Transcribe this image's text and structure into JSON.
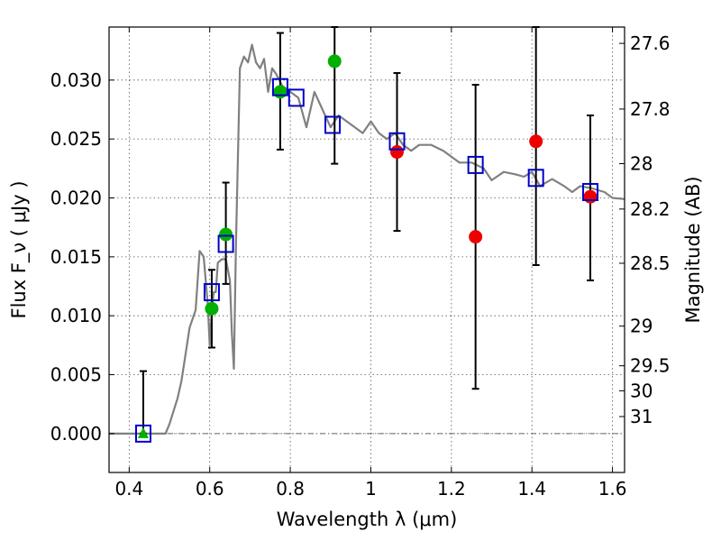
{
  "chart_data": {
    "type": "scatter",
    "title": "",
    "xlabel": "Wavelength  λ (μm)",
    "ylabel": "Flux  F_ν  ( μJy )",
    "ylabel_right": "Magnitude (AB)",
    "xlim": [
      0.35,
      1.63
    ],
    "ylim": [
      -0.0033,
      0.0345
    ],
    "grid": true,
    "x_ticks": [
      {
        "value": 0.4,
        "label": "0.4"
      },
      {
        "value": 0.6,
        "label": "0.6"
      },
      {
        "value": 0.8,
        "label": "0.8"
      },
      {
        "value": 1.0,
        "label": "1"
      },
      {
        "value": 1.2,
        "label": "1.2"
      },
      {
        "value": 1.4,
        "label": "1.4"
      },
      {
        "value": 1.6,
        "label": "1.6"
      }
    ],
    "y_ticks": [
      {
        "value": 0.0,
        "label": "0.000"
      },
      {
        "value": 0.005,
        "label": "0.005"
      },
      {
        "value": 0.01,
        "label": "0.010"
      },
      {
        "value": 0.015,
        "label": "0.015"
      },
      {
        "value": 0.02,
        "label": "0.020"
      },
      {
        "value": 0.025,
        "label": "0.025"
      },
      {
        "value": 0.03,
        "label": "0.030"
      }
    ],
    "mag_ticks": [
      {
        "mag": 27.6,
        "label": "27.6"
      },
      {
        "mag": 27.8,
        "label": "27.8"
      },
      {
        "mag": 28.0,
        "label": "28"
      },
      {
        "mag": 28.2,
        "label": "28.2"
      },
      {
        "mag": 28.5,
        "label": "28.5"
      },
      {
        "mag": 29.0,
        "label": "29"
      },
      {
        "mag": 29.5,
        "label": "29.5"
      },
      {
        "mag": 30.0,
        "label": "30"
      },
      {
        "mag": 31.0,
        "label": "31"
      }
    ],
    "colors": {
      "template": "#808080",
      "model_box": "#0000cc",
      "detection": "#00b000",
      "nondetection": "#ee0000",
      "errorbar": "#000000"
    },
    "template_spectrum": {
      "x": [
        0.35,
        0.49,
        0.5,
        0.52,
        0.53,
        0.55,
        0.565,
        0.575,
        0.585,
        0.595,
        0.6,
        0.605,
        0.61,
        0.615,
        0.62,
        0.63,
        0.64,
        0.65,
        0.655,
        0.66,
        0.665,
        0.675,
        0.685,
        0.695,
        0.705,
        0.715,
        0.725,
        0.735,
        0.745,
        0.755,
        0.765,
        0.78,
        0.8,
        0.82,
        0.84,
        0.86,
        0.88,
        0.9,
        0.92,
        0.94,
        0.96,
        0.98,
        1.0,
        1.02,
        1.04,
        1.06,
        1.08,
        1.1,
        1.12,
        1.15,
        1.18,
        1.2,
        1.22,
        1.25,
        1.28,
        1.3,
        1.33,
        1.36,
        1.38,
        1.4,
        1.42,
        1.45,
        1.48,
        1.5,
        1.52,
        1.55,
        1.58,
        1.6,
        1.63
      ],
      "y": [
        0.0,
        0.0,
        0.0008,
        0.003,
        0.0045,
        0.009,
        0.0105,
        0.0155,
        0.015,
        0.011,
        0.0075,
        0.0105,
        0.012,
        0.012,
        0.0145,
        0.0148,
        0.0148,
        0.013,
        0.0085,
        0.0055,
        0.016,
        0.031,
        0.032,
        0.0315,
        0.033,
        0.0315,
        0.031,
        0.0318,
        0.029,
        0.031,
        0.0305,
        0.0295,
        0.029,
        0.0285,
        0.026,
        0.029,
        0.0275,
        0.026,
        0.027,
        0.0265,
        0.026,
        0.0255,
        0.0265,
        0.0255,
        0.025,
        0.0255,
        0.0245,
        0.024,
        0.0245,
        0.0245,
        0.024,
        0.0235,
        0.023,
        0.023,
        0.0225,
        0.0215,
        0.0222,
        0.022,
        0.0218,
        0.0222,
        0.021,
        0.0216,
        0.021,
        0.0205,
        0.021,
        0.0208,
        0.0205,
        0.02,
        0.0199
      ]
    },
    "series": [
      {
        "marker": "open-square",
        "x": [
          0.435,
          0.605,
          0.64,
          0.775,
          0.815,
          0.905,
          1.065,
          1.26,
          1.41,
          1.545
        ],
        "y": [
          0.0,
          0.012,
          0.0161,
          0.0294,
          0.0285,
          0.0262,
          0.0248,
          0.0228,
          0.0217,
          0.0205
        ]
      },
      {
        "marker": "filled-circle",
        "x": [
          0.605,
          0.64,
          0.775,
          0.91
        ],
        "y": [
          0.0106,
          0.0169,
          0.029,
          0.0316
        ]
      },
      {
        "marker": "filled-circle",
        "x": [
          1.065,
          1.26,
          1.41,
          1.545
        ],
        "y": [
          0.0239,
          0.0167,
          0.0248,
          0.0201
        ]
      },
      {
        "marker": "filled-triangle",
        "x": [
          0.435
        ],
        "y": [
          0.0
        ]
      }
    ],
    "errorbars": [
      {
        "x": 0.435,
        "low": 0.0,
        "high": 0.0053
      },
      {
        "x": 0.605,
        "low": 0.0073,
        "high": 0.0139
      },
      {
        "x": 0.64,
        "low": 0.0127,
        "high": 0.0213
      },
      {
        "x": 0.775,
        "low": 0.0241,
        "high": 0.034
      },
      {
        "x": 0.91,
        "low": 0.0229,
        "high": 0.0345
      },
      {
        "x": 1.065,
        "low": 0.0172,
        "high": 0.0306
      },
      {
        "x": 1.26,
        "low": 0.0038,
        "high": 0.0296
      },
      {
        "x": 1.41,
        "low": 0.0143,
        "high": 0.0345
      },
      {
        "x": 1.545,
        "low": 0.013,
        "high": 0.027
      }
    ]
  }
}
